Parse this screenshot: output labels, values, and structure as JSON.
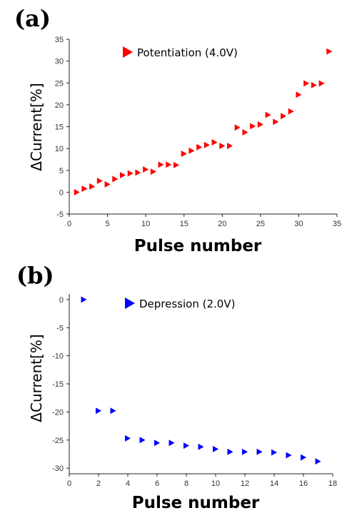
{
  "chart_data": [
    {
      "type": "scatter",
      "panel_label": "(a)",
      "xlabel": "Pulse number",
      "ylabel": "ΔCurrent[%]",
      "xlim": [
        0,
        35
      ],
      "ylim": [
        -5,
        35
      ],
      "xticks": [
        0,
        5,
        10,
        15,
        20,
        25,
        30,
        35
      ],
      "yticks": [
        -5,
        0,
        5,
        10,
        15,
        20,
        25,
        30,
        35
      ],
      "legend_placement": "top-center",
      "series": [
        {
          "name": "Potentiation (4.0V)",
          "color": "#ff0000",
          "marker": "right-triangle",
          "x": [
            1,
            2,
            3,
            4,
            5,
            6,
            7,
            8,
            9,
            10,
            11,
            12,
            13,
            14,
            15,
            16,
            17,
            18,
            19,
            20,
            21,
            22,
            23,
            24,
            25,
            26,
            27,
            28,
            29,
            30,
            31,
            32,
            33,
            34
          ],
          "y": [
            0,
            0.8,
            1.3,
            2.6,
            1.8,
            3.0,
            3.9,
            4.3,
            4.5,
            5.2,
            4.7,
            6.3,
            6.3,
            6.2,
            8.8,
            9.5,
            10.3,
            10.8,
            11.4,
            10.6,
            10.6,
            14.8,
            13.7,
            15.1,
            15.5,
            17.7,
            16.1,
            17.4,
            18.5,
            22.3,
            24.9,
            24.5,
            24.9,
            32.2
          ]
        }
      ]
    },
    {
      "type": "scatter",
      "panel_label": "(b)",
      "xlabel": "Pulse number",
      "ylabel": "ΔCurrent[%]",
      "xlim": [
        0,
        18
      ],
      "ylim": [
        -31,
        1
      ],
      "xticks": [
        0,
        2,
        4,
        6,
        8,
        10,
        12,
        14,
        16,
        18
      ],
      "yticks": [
        0,
        -5,
        -10,
        -15,
        -20,
        -25,
        -30
      ],
      "legend_placement": "top-center",
      "series": [
        {
          "name": "Depression (2.0V)",
          "color": "#0000ff",
          "marker": "right-triangle",
          "x": [
            1,
            2,
            3,
            4,
            5,
            6,
            7,
            8,
            9,
            10,
            11,
            12,
            13,
            14,
            15,
            16,
            17
          ],
          "y": [
            0,
            -19.8,
            -19.8,
            -24.7,
            -25.0,
            -25.5,
            -25.5,
            -26.0,
            -26.2,
            -26.6,
            -27.1,
            -27.1,
            -27.1,
            -27.2,
            -27.7,
            -28.1,
            -28.8
          ]
        }
      ]
    }
  ]
}
